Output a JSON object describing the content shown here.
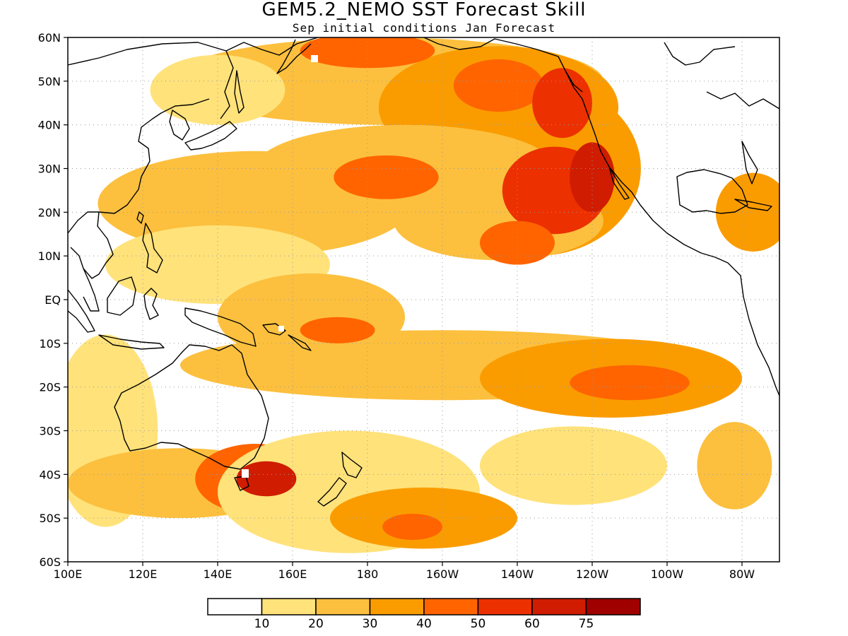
{
  "title": "GEM5.2_NEMO SST Forecast Skill",
  "subtitle": "Sep initial conditions  Jan Forecast",
  "map": {
    "lon_range": [
      100,
      290
    ],
    "lat_range": [
      -60,
      60
    ],
    "lat_ticks": [
      {
        "value": 60,
        "label": "60N"
      },
      {
        "value": 50,
        "label": "50N"
      },
      {
        "value": 40,
        "label": "40N"
      },
      {
        "value": 30,
        "label": "30N"
      },
      {
        "value": 20,
        "label": "20N"
      },
      {
        "value": 10,
        "label": "10N"
      },
      {
        "value": 0,
        "label": "EQ"
      },
      {
        "value": -10,
        "label": "10S"
      },
      {
        "value": -20,
        "label": "20S"
      },
      {
        "value": -30,
        "label": "30S"
      },
      {
        "value": -40,
        "label": "40S"
      },
      {
        "value": -50,
        "label": "50S"
      },
      {
        "value": -60,
        "label": "60S"
      }
    ],
    "lon_ticks": [
      {
        "value": 100,
        "label": "100E"
      },
      {
        "value": 120,
        "label": "120E"
      },
      {
        "value": 140,
        "label": "140E"
      },
      {
        "value": 160,
        "label": "160E"
      },
      {
        "value": 180,
        "label": "180"
      },
      {
        "value": 200,
        "label": "160W"
      },
      {
        "value": 220,
        "label": "140W"
      },
      {
        "value": 240,
        "label": "120W"
      },
      {
        "value": 260,
        "label": "100W"
      },
      {
        "value": 280,
        "label": "80W"
      }
    ]
  },
  "colorbar": {
    "bins": [
      {
        "label": "",
        "color": "#ffffff"
      },
      {
        "label": "10",
        "color": "#ffe27a"
      },
      {
        "label": "20",
        "color": "#fcc03e"
      },
      {
        "label": "30",
        "color": "#fa9c00"
      },
      {
        "label": "40",
        "color": "#ff6400"
      },
      {
        "label": "50",
        "color": "#ec3000"
      },
      {
        "label": "60",
        "color": "#d01c00"
      },
      {
        "label": "75",
        "color": "#a00000"
      }
    ]
  },
  "skill_regions": [
    {
      "lon": 185,
      "lat": 50,
      "rx": 58,
      "ry": 10,
      "level": 2
    },
    {
      "lon": 215,
      "lat": 44,
      "rx": 32,
      "ry": 14,
      "level": 3
    },
    {
      "lon": 225,
      "lat": 30,
      "rx": 28,
      "ry": 20,
      "level": 3
    },
    {
      "lon": 190,
      "lat": 30,
      "rx": 40,
      "ry": 10,
      "level": 2
    },
    {
      "lon": 150,
      "lat": 22,
      "rx": 42,
      "ry": 12,
      "level": 2
    },
    {
      "lon": 215,
      "lat": 18,
      "rx": 28,
      "ry": 9,
      "level": 2
    },
    {
      "lon": 140,
      "lat": 8,
      "rx": 30,
      "ry": 9,
      "level": 1
    },
    {
      "lon": 165,
      "lat": -4,
      "rx": 25,
      "ry": 10,
      "level": 2
    },
    {
      "lon": 200,
      "lat": -15,
      "rx": 70,
      "ry": 8,
      "level": 2
    },
    {
      "lon": 245,
      "lat": -18,
      "rx": 35,
      "ry": 9,
      "level": 3
    },
    {
      "lon": 110,
      "lat": -30,
      "rx": 14,
      "ry": 22,
      "level": 1
    },
    {
      "lon": 130,
      "lat": -42,
      "rx": 30,
      "ry": 8,
      "level": 2
    },
    {
      "lon": 150,
      "lat": -41,
      "rx": 16,
      "ry": 8,
      "level": 4
    },
    {
      "lon": 175,
      "lat": -44,
      "rx": 35,
      "ry": 14,
      "level": 1
    },
    {
      "lon": 195,
      "lat": -50,
      "rx": 25,
      "ry": 7,
      "level": 3
    },
    {
      "lon": 235,
      "lat": -38,
      "rx": 25,
      "ry": 9,
      "level": 1
    },
    {
      "lon": 278,
      "lat": -38,
      "rx": 10,
      "ry": 10,
      "level": 2
    },
    {
      "lon": 283,
      "lat": 20,
      "rx": 10,
      "ry": 9,
      "level": 3
    },
    {
      "lon": 140,
      "lat": 48,
      "rx": 18,
      "ry": 8,
      "level": 1
    },
    {
      "lon": 180,
      "lat": 57,
      "rx": 18,
      "ry": 4,
      "level": 4
    },
    {
      "lon": 215,
      "lat": 49,
      "rx": 12,
      "ry": 6,
      "level": 4
    },
    {
      "lon": 232,
      "lat": 45,
      "rx": 8,
      "ry": 8,
      "level": 5
    },
    {
      "lon": 230,
      "lat": 25,
      "rx": 14,
      "ry": 10,
      "level": 5
    },
    {
      "lon": 240,
      "lat": 28,
      "rx": 6,
      "ry": 8,
      "level": 6
    },
    {
      "lon": 185,
      "lat": 28,
      "rx": 14,
      "ry": 5,
      "level": 4
    },
    {
      "lon": 220,
      "lat": 13,
      "rx": 10,
      "ry": 5,
      "level": 4
    },
    {
      "lon": 172,
      "lat": -7,
      "rx": 10,
      "ry": 3,
      "level": 4
    },
    {
      "lon": 250,
      "lat": -19,
      "rx": 16,
      "ry": 4,
      "level": 4
    },
    {
      "lon": 153,
      "lat": -41,
      "rx": 8,
      "ry": 4,
      "level": 6
    },
    {
      "lon": 192,
      "lat": -52,
      "rx": 8,
      "ry": 3,
      "level": 4
    }
  ]
}
